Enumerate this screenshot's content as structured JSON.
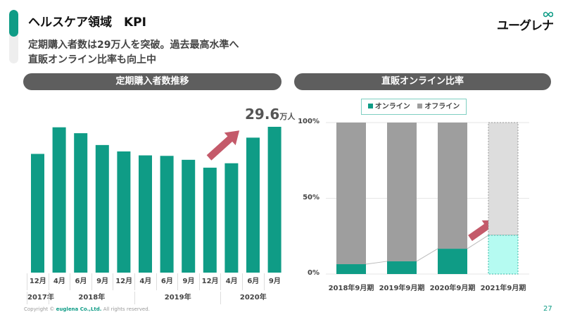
{
  "header": {
    "title": "ヘルスケア領域　KPI",
    "subtitle_lines": [
      "定期購入者数は29万人を突破。過去最高水準へ",
      "直販オンライン比率も向上中"
    ],
    "logo": "ユーグレナ"
  },
  "colors": {
    "accent": "#0f9c86",
    "offline": "#9e9e9e",
    "forecast_online": "#b5fbf1",
    "forecast_offline": "#dddddd",
    "arrow": "#c45a6a",
    "pill": "#5e5e5e"
  },
  "footer": {
    "copyright_prefix": "Copyright ©",
    "company": "euglena Co.,Ltd.",
    "copyright_suffix": "All rights reserved.",
    "page_number": "27"
  },
  "chart_data": [
    {
      "type": "bar",
      "title": "定期購入者数推移",
      "callout_value": "29.6",
      "callout_unit": "万人",
      "categories": [
        "12月",
        "4月",
        "6月",
        "9月",
        "12月",
        "4月",
        "6月",
        "9月",
        "12月",
        "4月",
        "6月",
        "9月"
      ],
      "years": [
        {
          "label": "2017年",
          "span": 1
        },
        {
          "label": "2018年",
          "span": 4
        },
        {
          "label": "2019年",
          "span": 4
        },
        {
          "label": "2020年",
          "span": 3
        }
      ],
      "values": [
        24.1,
        29.5,
        28.3,
        25.9,
        24.6,
        23.8,
        23.7,
        22.9,
        21.3,
        22.2,
        27.4,
        29.6
      ],
      "unit": "万人",
      "grid": false
    },
    {
      "type": "bar",
      "stacked": true,
      "title": "直販オンライン比率",
      "categories": [
        "2018年9月期",
        "2019年9月期",
        "2020年9月期",
        "2021年9月期"
      ],
      "series": [
        {
          "name": "オンライン",
          "values": [
            6.5,
            8.4,
            16.7,
            25.6
          ]
        },
        {
          "name": "オフライン",
          "values": [
            93.5,
            91.6,
            83.3,
            74.4
          ]
        }
      ],
      "forecast_category": "2021年9月期",
      "yticks": [
        "0%",
        "50%",
        "100%"
      ],
      "ylim": [
        0,
        100
      ],
      "legend": "top",
      "grid": true
    }
  ]
}
